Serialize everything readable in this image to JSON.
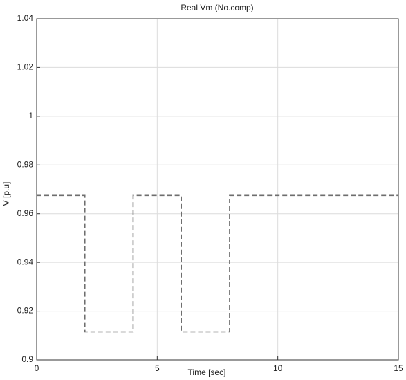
{
  "chart_data": {
    "type": "line",
    "title": "Real Vm (No.comp)",
    "xlabel": "Time [sec]",
    "ylabel": "V [p.u]",
    "x": [
      0,
      2,
      2,
      4,
      4,
      6,
      6,
      8,
      8,
      15
    ],
    "series": [
      {
        "color": "#6e6e6e",
        "values": [
          0.9675,
          0.9675,
          0.9115,
          0.9115,
          0.9675,
          0.9675,
          0.9115,
          0.9115,
          0.9675,
          0.9675
        ]
      }
    ],
    "xlim": [
      0,
      15
    ],
    "xticks": [
      0,
      5,
      10,
      15
    ],
    "ylim": [
      0.9,
      1.04
    ],
    "yticks": [
      0.9,
      0.92,
      0.94,
      0.96,
      0.98,
      1,
      1.02,
      1.04
    ],
    "grid": true,
    "line_style": "dashed"
  }
}
